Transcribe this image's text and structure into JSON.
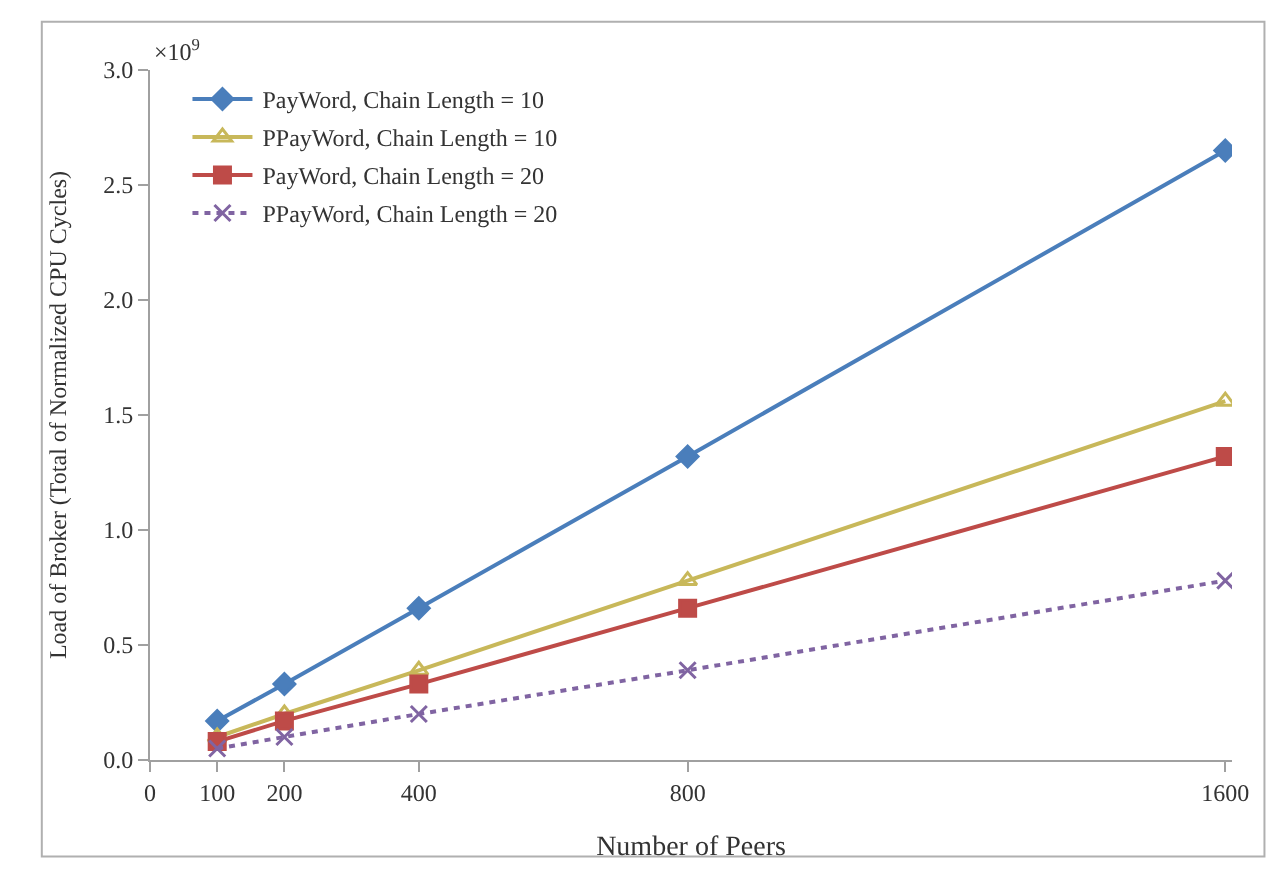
{
  "chart_data": {
    "type": "line",
    "xlabel": "Number of Peers",
    "ylabel": "Load of Broker (Total of Normalized CPU Cycles)",
    "annotations": [
      "×10$^{9}$"
    ],
    "x": [
      100,
      200,
      400,
      800,
      1600
    ],
    "series": [
      {
        "name": "PayWord, Chain Length = 10",
        "color": "#4a7ebb",
        "marker": "diamond",
        "line_style": "solid",
        "values": [
          0.17,
          0.33,
          0.66,
          1.32,
          2.65
        ]
      },
      {
        "name": "PPayWord, Chain Length = 10",
        "color": "#c8b85a",
        "marker": "triangle",
        "line_style": "solid",
        "values": [
          0.1,
          0.2,
          0.39,
          0.78,
          1.56
        ]
      },
      {
        "name": "PayWord, Chain Length = 20",
        "color": "#be4b48",
        "marker": "square",
        "line_style": "solid",
        "values": [
          0.08,
          0.17,
          0.33,
          0.66,
          1.32
        ]
      },
      {
        "name": "PPayWord, Chain Length = 20",
        "color": "#8064a2",
        "marker": "cross",
        "line_style": "dotted",
        "values": [
          0.05,
          0.1,
          0.2,
          0.39,
          0.78
        ]
      }
    ],
    "xlim": [
      0,
      1610
    ],
    "xticks": [
      0,
      100,
      200,
      400,
      800,
      1600
    ],
    "ylim": [
      0,
      3.0
    ],
    "yticks": [
      {
        "value": 0,
        "label": "0.0"
      },
      {
        "value": 0.5,
        "label": "0.5"
      },
      {
        "value": 1.0,
        "label": "1.0"
      },
      {
        "value": 1.5,
        "label": "1.5"
      },
      {
        "value": 2.0,
        "label": "2.0"
      },
      {
        "value": 2.5,
        "label": "2.5"
      },
      {
        "value": 3.0,
        "label": "3.0"
      }
    ],
    "legend": "top left"
  }
}
